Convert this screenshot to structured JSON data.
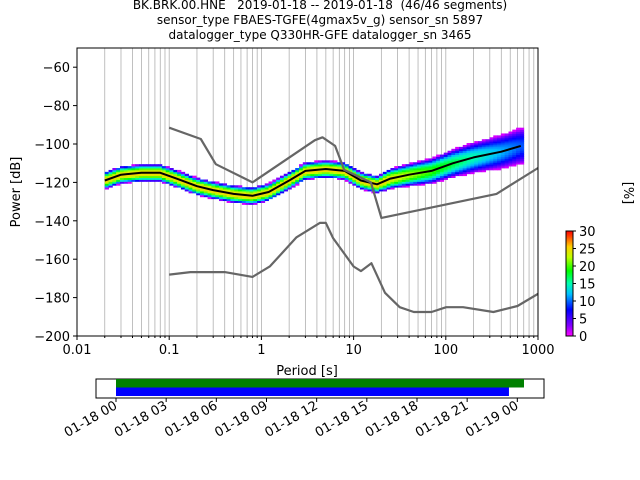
{
  "chart_data": {
    "type": "scatter",
    "title_lines": [
      "BK.BRK.00.HNE   2019-01-18 -- 2019-01-18  (46/46 segments)",
      "sensor_type FBAES-TGFE(4gmax5v_g) sensor_sn 5897",
      "datalogger_type Q330HR-GFE datalogger_sn 3465"
    ],
    "xlabel": "Period [s]",
    "ylabel": "Power [dB]",
    "x_scale": "log",
    "xlim": [
      0.01,
      1000
    ],
    "ylim": [
      -200,
      -50
    ],
    "x_ticks": [
      0.01,
      0.1,
      1,
      10,
      100,
      1000
    ],
    "x_tick_labels": [
      "0.01",
      "0.1",
      "1",
      "10",
      "100",
      "1000"
    ],
    "y_ticks": [
      -200,
      -180,
      -160,
      -140,
      -120,
      -100,
      -80,
      -60
    ],
    "y_tick_labels": [
      "−200",
      "−180",
      "−160",
      "−140",
      "−120",
      "−100",
      "−80",
      "−60"
    ],
    "grid": true,
    "colorbar": {
      "label": "[%]",
      "range": [
        0,
        30
      ],
      "ticks": [
        0,
        5,
        10,
        15,
        20,
        25,
        30
      ],
      "tick_labels": [
        "0",
        "5",
        "10",
        "15",
        "20",
        "25",
        "30"
      ]
    },
    "series": [
      {
        "style": "mean",
        "color": "#000000",
        "x": [
          0.02,
          0.03,
          0.05,
          0.08,
          0.12,
          0.2,
          0.3,
          0.5,
          0.8,
          1.2,
          2,
          3,
          5,
          8,
          12,
          18,
          25,
          40,
          70,
          120,
          200,
          400,
          650
        ],
        "y": [
          -119,
          -116,
          -115,
          -115,
          -118,
          -122,
          -124,
          -126,
          -127,
          -125,
          -119,
          -114,
          -113,
          -114,
          -119,
          -121,
          -118,
          -116,
          -114,
          -110,
          -107,
          -104,
          -101
        ]
      },
      {
        "style": "NHNM",
        "color": "#666666",
        "x": [
          0.1,
          0.22,
          0.32,
          0.8,
          3.8,
          4.6,
          6.3,
          7.9,
          15.4,
          20,
          354.8,
          1000
        ],
        "y": [
          -91.5,
          -97.4,
          -110.5,
          -120,
          -98,
          -96.5,
          -101,
          -113.5,
          -120,
          -138.5,
          -126,
          -112.5
        ]
      },
      {
        "style": "NLNM",
        "color": "#666666",
        "x": [
          0.1,
          0.17,
          0.4,
          0.8,
          1.24,
          2.4,
          4.3,
          5,
          6,
          10,
          12,
          15.6,
          21.9,
          31.6,
          45,
          70,
          101,
          154,
          328,
          600,
          1000
        ],
        "y": [
          -168,
          -166.7,
          -166.7,
          -169.2,
          -163.7,
          -148.6,
          -141.1,
          -141.1,
          -149,
          -163.8,
          -166.2,
          -162.1,
          -177.5,
          -185,
          -187.5,
          -187.5,
          -185,
          -185,
          -187.5,
          -184.4,
          -178
        ]
      }
    ],
    "coverage": {
      "x_tick_labels": [
        "01-18 00",
        "01-18 03",
        "01-18 06",
        "01-18 09",
        "01-18 12",
        "01-18 15",
        "01-18 18",
        "01-18 21",
        "01-19 00"
      ],
      "bars": [
        {
          "color": "#008000",
          "start_hour": 0,
          "end_hour": 24.4
        },
        {
          "color": "#0000ff",
          "start_hour": 0,
          "end_hour": 23.5
        }
      ]
    }
  }
}
